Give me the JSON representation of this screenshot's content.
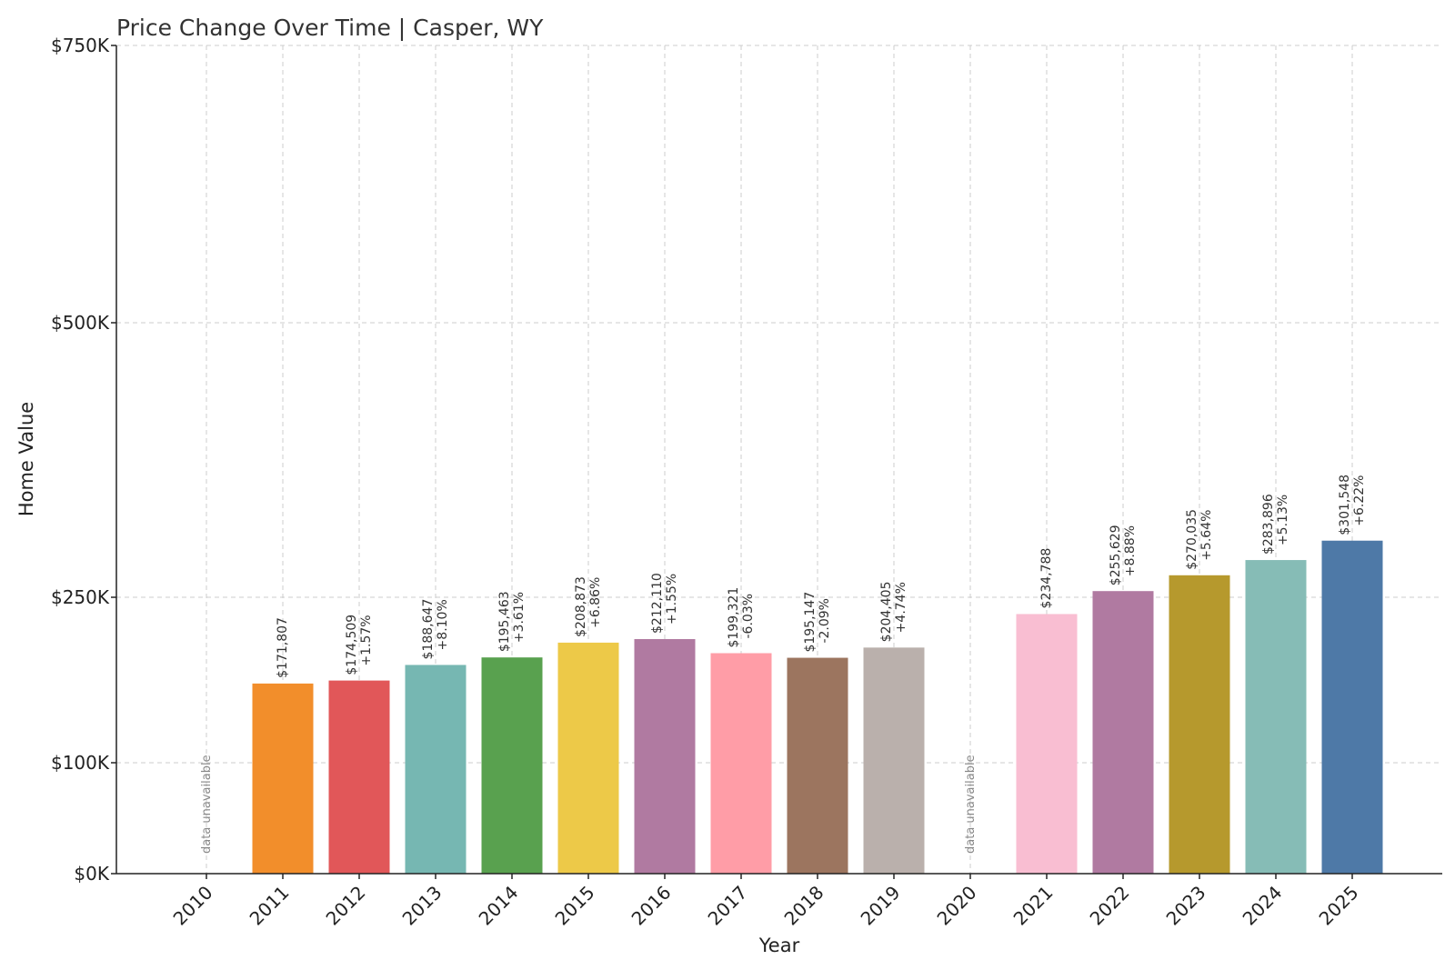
{
  "chart_data": {
    "type": "bar",
    "title": "Price Change Over Time | Casper, WY",
    "xlabel": "Year",
    "ylabel": "Home Value",
    "y_ticks": [
      {
        "value": 0,
        "label": "$0K"
      },
      {
        "value": 100000,
        "label": "$100K"
      },
      {
        "value": 250000,
        "label": "$250K"
      },
      {
        "value": 500000,
        "label": "$500K"
      },
      {
        "value": 750000,
        "label": "$750K"
      }
    ],
    "ylim": [
      0,
      750000
    ],
    "grid": true,
    "unavailable_text": "data unavailable",
    "bars": [
      {
        "year": "2010",
        "value": null,
        "value_label": "",
        "change_label": "",
        "color": "#000000"
      },
      {
        "year": "2011",
        "value": 171807,
        "value_label": "$171,807",
        "change_label": "",
        "color": "#F28E2B"
      },
      {
        "year": "2012",
        "value": 174509,
        "value_label": "$174,509",
        "change_label": "+1.57%",
        "color": "#E15759"
      },
      {
        "year": "2013",
        "value": 188647,
        "value_label": "$188,647",
        "change_label": "+8.10%",
        "color": "#76B7B2"
      },
      {
        "year": "2014",
        "value": 195463,
        "value_label": "$195,463",
        "change_label": "+3.61%",
        "color": "#59A14F"
      },
      {
        "year": "2015",
        "value": 208873,
        "value_label": "$208,873",
        "change_label": "+6.86%",
        "color": "#EDC948"
      },
      {
        "year": "2016",
        "value": 212110,
        "value_label": "$212,110",
        "change_label": "+1.55%",
        "color": "#B07AA1"
      },
      {
        "year": "2017",
        "value": 199321,
        "value_label": "$199,321",
        "change_label": "-6.03%",
        "color": "#FF9DA7"
      },
      {
        "year": "2018",
        "value": 195147,
        "value_label": "$195,147",
        "change_label": "-2.09%",
        "color": "#9C755F"
      },
      {
        "year": "2019",
        "value": 204405,
        "value_label": "$204,405",
        "change_label": "+4.74%",
        "color": "#BAB0AC"
      },
      {
        "year": "2020",
        "value": null,
        "value_label": "",
        "change_label": "",
        "color": "#000000"
      },
      {
        "year": "2021",
        "value": 234788,
        "value_label": "$234,788",
        "change_label": "",
        "color": "#F9BED2"
      },
      {
        "year": "2022",
        "value": 255629,
        "value_label": "$255,629",
        "change_label": "+8.88%",
        "color": "#B07AA1"
      },
      {
        "year": "2023",
        "value": 270035,
        "value_label": "$270,035",
        "change_label": "+5.64%",
        "color": "#B6992D"
      },
      {
        "year": "2024",
        "value": 283896,
        "value_label": "$283,896",
        "change_label": "+5.13%",
        "color": "#86BCB6"
      },
      {
        "year": "2025",
        "value": 301548,
        "value_label": "$301,548",
        "change_label": "+6.22%",
        "color": "#4E79A7"
      }
    ]
  }
}
